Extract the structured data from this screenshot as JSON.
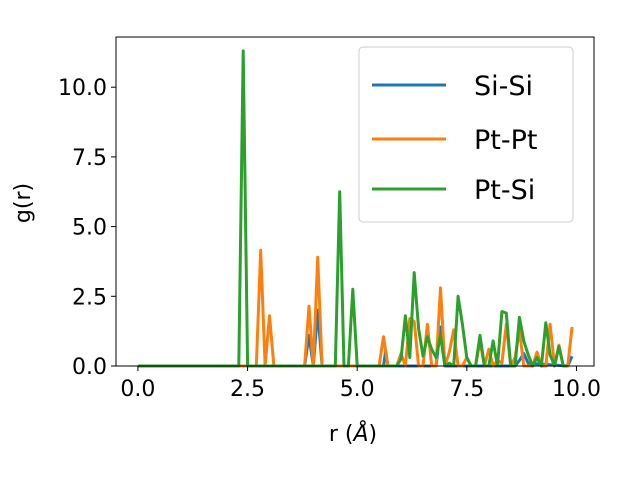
{
  "chart_data": {
    "type": "line",
    "xlabel_main": "r (",
    "xlabel_unit": "Å",
    "xlabel_close": ")",
    "ylabel": "g(r)",
    "xlim": [
      -0.5,
      10.4
    ],
    "ylim": [
      0,
      11.8
    ],
    "xticks": [
      0.0,
      2.5,
      5.0,
      7.5,
      10.0
    ],
    "xtick_labels": [
      "0.0",
      "2.5",
      "5.0",
      "7.5",
      "10.0"
    ],
    "yticks": [
      0.0,
      2.5,
      5.0,
      7.5,
      10.0
    ],
    "ytick_labels": [
      "0.0",
      "2.5",
      "5.0",
      "7.5",
      "10.0"
    ],
    "grid": false,
    "legend_position": "top-right",
    "series": [
      {
        "name": "Si-Si",
        "color": "#1f77b4",
        "x": [
          0,
          3.8,
          3.9,
          4.0,
          4.1,
          4.2,
          5.6,
          5.65,
          5.7,
          6.8,
          6.9,
          7.0,
          8.6,
          8.7,
          8.8,
          8.9,
          9.8,
          9.9
        ],
        "y": [
          0,
          0,
          1.1,
          0,
          2.0,
          0,
          0,
          0.55,
          0,
          0,
          1.4,
          0,
          0,
          0.2,
          0.45,
          0.1,
          0,
          0.35
        ]
      },
      {
        "name": "Pt-Pt",
        "color": "#ff7f0e",
        "x": [
          0,
          2.6,
          2.7,
          2.8,
          2.9,
          3.0,
          3.1,
          3.8,
          3.9,
          4.0,
          4.1,
          4.2,
          5.5,
          5.6,
          5.7,
          5.9,
          6.0,
          6.1,
          6.2,
          6.3,
          6.4,
          6.5,
          6.6,
          6.7,
          6.8,
          6.9,
          7.0,
          7.1,
          7.2,
          7.3,
          7.4,
          7.5,
          7.6,
          7.7,
          7.8,
          7.9,
          8.0,
          8.1,
          8.2,
          8.3,
          8.4,
          8.5,
          8.6,
          8.7,
          8.8,
          8.9,
          9.0,
          9.1,
          9.2,
          9.3,
          9.4,
          9.5,
          9.6,
          9.7,
          9.8,
          9.9
        ],
        "y": [
          0,
          0,
          0,
          4.15,
          0,
          1.8,
          0,
          0,
          2.15,
          0,
          3.9,
          0,
          0,
          1.05,
          0,
          0,
          0.45,
          0,
          1.7,
          1.6,
          0,
          0,
          1.5,
          0,
          0,
          2.8,
          0,
          0.5,
          1.3,
          0,
          0,
          0.3,
          0,
          0,
          0.9,
          0,
          0.6,
          0,
          0.2,
          0.1,
          1.5,
          0,
          0.3,
          1.3,
          0,
          0,
          0,
          0.5,
          0,
          0,
          1.5,
          0,
          0.75,
          0,
          0,
          1.4
        ]
      },
      {
        "name": "Pt-Si",
        "color": "#2ca02c",
        "x": [
          0,
          2.3,
          2.4,
          2.5,
          4.5,
          4.6,
          4.7,
          4.8,
          4.9,
          5.0,
          5.9,
          6.0,
          6.1,
          6.2,
          6.3,
          6.4,
          6.5,
          6.6,
          6.7,
          6.8,
          6.9,
          7.0,
          7.1,
          7.2,
          7.3,
          7.4,
          7.5,
          7.6,
          7.7,
          7.8,
          7.9,
          8.0,
          8.1,
          8.2,
          8.3,
          8.4,
          8.5,
          8.6,
          8.7,
          8.8,
          8.9,
          9.0,
          9.1,
          9.2,
          9.3,
          9.4,
          9.5,
          9.6,
          9.7,
          9.8
        ],
        "y": [
          0,
          0,
          11.3,
          0,
          0,
          6.25,
          0,
          0,
          2.75,
          0,
          0,
          0.25,
          1.8,
          0.3,
          3.35,
          1.35,
          0.35,
          1.05,
          0.6,
          0.3,
          1.1,
          0,
          0.1,
          0,
          2.5,
          1.5,
          0.3,
          0,
          0,
          1.1,
          0,
          0,
          0.9,
          0,
          1.95,
          1.9,
          0,
          0,
          1.75,
          0.9,
          0.4,
          0,
          0.3,
          0,
          1.55,
          0.4,
          0,
          0.7,
          0,
          0
        ]
      }
    ]
  }
}
